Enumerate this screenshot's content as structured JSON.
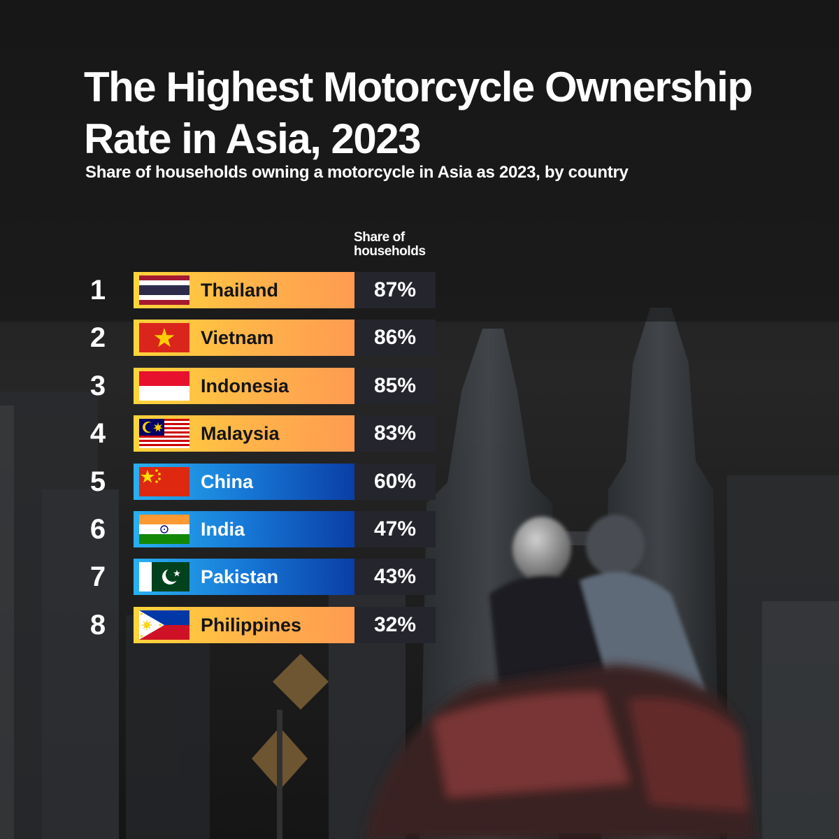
{
  "chart_data": {
    "type": "table",
    "title": "The Highest Motorcycle Ownership Rate in Asia, 2023",
    "subtitle": "Share of households owning a motorcycle in Asia as 2023, by country",
    "column_header": "Share of households",
    "rows": [
      {
        "rank": "1",
        "country": "Thailand",
        "value": 87,
        "label": "87%",
        "flag_icon": "thailand-flag-icon",
        "bar_color": "orange"
      },
      {
        "rank": "2",
        "country": "Vietnam",
        "value": 86,
        "label": "86%",
        "flag_icon": "vietnam-flag-icon",
        "bar_color": "orange"
      },
      {
        "rank": "3",
        "country": "Indonesia",
        "value": 85,
        "label": "85%",
        "flag_icon": "indonesia-flag-icon",
        "bar_color": "orange"
      },
      {
        "rank": "4",
        "country": "Malaysia",
        "value": 83,
        "label": "83%",
        "flag_icon": "malaysia-flag-icon",
        "bar_color": "orange"
      },
      {
        "rank": "5",
        "country": "China",
        "value": 60,
        "label": "60%",
        "flag_icon": "china-flag-icon",
        "bar_color": "blue"
      },
      {
        "rank": "6",
        "country": "India",
        "value": 47,
        "label": "47%",
        "flag_icon": "india-flag-icon",
        "bar_color": "blue"
      },
      {
        "rank": "7",
        "country": "Pakistan",
        "value": 43,
        "label": "43%",
        "flag_icon": "pakistan-flag-icon",
        "bar_color": "blue"
      },
      {
        "rank": "8",
        "country": "Philippines",
        "value": 32,
        "label": "32%",
        "flag_icon": "philippines-flag-icon",
        "bar_color": "orange"
      }
    ],
    "colors": {
      "orange_start": "#ffd53a",
      "orange_end": "#ff9b52",
      "blue_start": "#28b0f2",
      "blue_end": "#0a3ea6",
      "value_box": "#25252d",
      "text": "#ffffff"
    }
  }
}
